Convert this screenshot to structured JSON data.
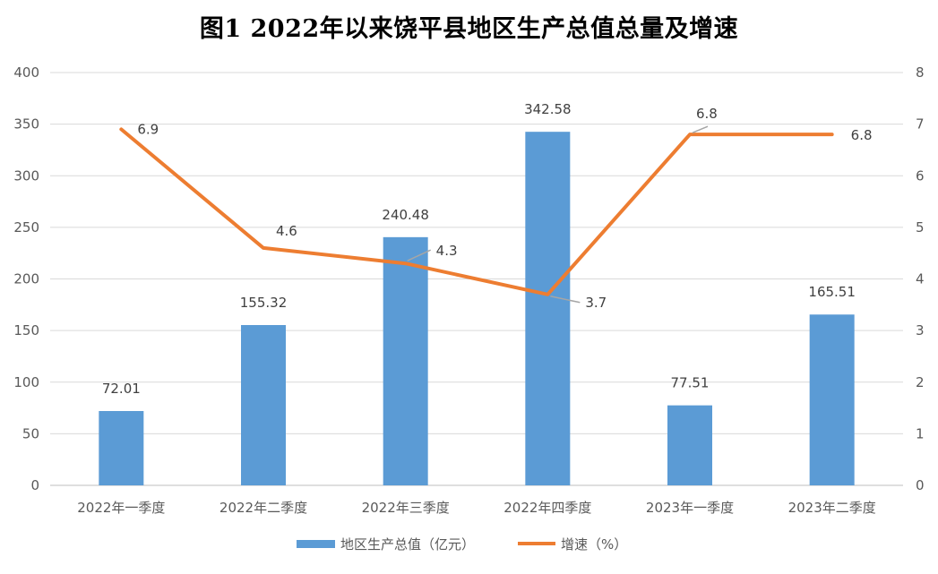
{
  "chart_data": {
    "type": "bar+line",
    "title": "图1  2022年以来饶平县地区生产总值总量及增速",
    "categories": [
      "2022年一季度",
      "2022年二季度",
      "2022年三季度",
      "2022年四季度",
      "2023年一季度",
      "2023年二季度"
    ],
    "series": [
      {
        "name": "地区生产总值（亿元）",
        "type": "bar",
        "axis": "left",
        "color": "#5B9BD5",
        "values": [
          72.01,
          155.32,
          240.48,
          342.58,
          77.51,
          165.51
        ],
        "labels": [
          "72.01",
          "155.32",
          "240.48",
          "342.58",
          "77.51",
          "165.51"
        ]
      },
      {
        "name": "增速（%）",
        "type": "line",
        "axis": "right",
        "color": "#ED7D31",
        "values": [
          6.9,
          4.6,
          4.3,
          3.7,
          6.8,
          6.8
        ],
        "labels": [
          "6.9",
          "4.6",
          "4.3",
          "3.7",
          "6.8",
          "6.8"
        ]
      }
    ],
    "y_left": {
      "min": 0,
      "max": 400,
      "step": 50,
      "ticks": [
        "0",
        "50",
        "100",
        "150",
        "200",
        "250",
        "300",
        "350",
        "400"
      ]
    },
    "y_right": {
      "min": 0,
      "max": 8,
      "step": 1,
      "ticks": [
        "0",
        "1",
        "2",
        "3",
        "4",
        "5",
        "6",
        "7",
        "8"
      ]
    },
    "grid": true,
    "legend_position": "bottom"
  }
}
